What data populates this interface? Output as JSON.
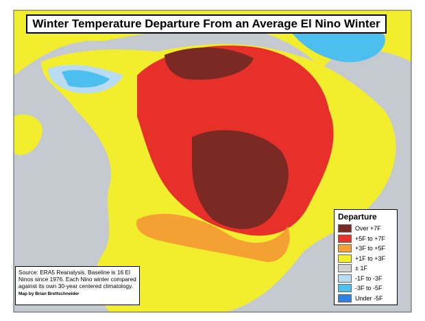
{
  "title": "Winter Temperature Departure From an Average El Nino Winter",
  "legend": {
    "title": "Departure",
    "items": [
      {
        "label": "Over +7F",
        "color": "#7a2a22"
      },
      {
        "label": "+5F to +7F",
        "color": "#e8302a"
      },
      {
        "label": "+3F to +5F",
        "color": "#f5a033"
      },
      {
        "label": "+1F to +3F",
        "color": "#f2ee2e"
      },
      {
        "label": "± 1F",
        "color": "#d2d2d2"
      },
      {
        "label": "-1F to -3F",
        "color": "#b9dcf2"
      },
      {
        "label": "-3F to -5F",
        "color": "#4cbfee"
      },
      {
        "label": "Under -5F",
        "color": "#2f7fe0"
      }
    ]
  },
  "source": "Source: ERA5 Reanalysis. Baseline is 16 El Ninos since 1976. Each Nino winter compared against its own 30-year centered climatology.",
  "credit": "Map by Brian Brettschneider"
}
